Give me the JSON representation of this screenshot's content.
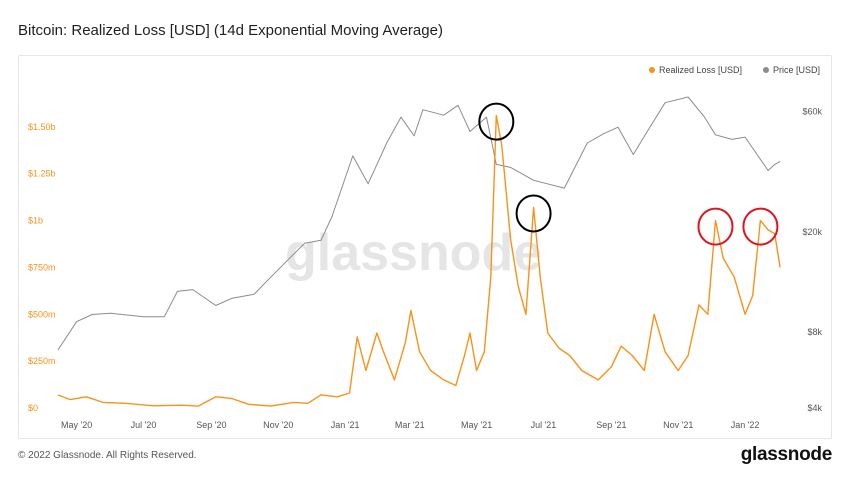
{
  "page": {
    "title": "Bitcoin: Realized Loss [USD] (14d Exponential Moving Average)",
    "copyright": "© 2022 Glassnode. All Rights Reserved.",
    "brand": "glassnode",
    "watermark": "glassnode"
  },
  "colors": {
    "loss": "#f7931a",
    "price": "#8c8c8c",
    "highlight_black": "#000000",
    "highlight_red": "#e0141e"
  },
  "chart_data": {
    "type": "line",
    "x_tick_labels": [
      "May '20",
      "Jul '20",
      "Sep '20",
      "Nov '20",
      "Jan '21",
      "Mar '21",
      "May '21",
      "Jul '21",
      "Sep '21",
      "Nov '21",
      "Jan '22"
    ],
    "x_ticks": [
      "2020-05-01",
      "2020-07-01",
      "2020-09-01",
      "2020-11-01",
      "2021-01-01",
      "2021-03-01",
      "2021-05-01",
      "2021-07-01",
      "2021-09-01",
      "2021-11-01",
      "2022-01-01"
    ],
    "xlim": [
      "2020-04-14",
      "2022-02-11"
    ],
    "left_axis": {
      "ticks": [
        0,
        250000000,
        500000000,
        750000000,
        1000000000,
        1250000000,
        1500000000
      ],
      "tick_labels": [
        "$0",
        "$250m",
        "$500m",
        "$750m",
        "$1b",
        "$1.25b",
        "$1.50b"
      ],
      "ylim": [
        0,
        1750000000
      ]
    },
    "right_axis": {
      "scale": "log",
      "ticks": [
        4000,
        8000,
        20000,
        60000
      ],
      "tick_labels": [
        "$4k",
        "$8k",
        "$20k",
        "$60k"
      ],
      "ylim": [
        4000,
        80000
      ]
    },
    "legend": {
      "position": "top-right",
      "items": [
        "Realized Loss [USD]",
        "Price [USD]"
      ]
    },
    "series": [
      {
        "name": "Realized Loss [USD]",
        "axis": "left",
        "points": [
          [
            "2020-04-14",
            70000000
          ],
          [
            "2020-04-25",
            45000000
          ],
          [
            "2020-05-10",
            60000000
          ],
          [
            "2020-05-25",
            30000000
          ],
          [
            "2020-06-15",
            25000000
          ],
          [
            "2020-07-10",
            12000000
          ],
          [
            "2020-08-05",
            15000000
          ],
          [
            "2020-08-20",
            10000000
          ],
          [
            "2020-09-05",
            60000000
          ],
          [
            "2020-09-20",
            50000000
          ],
          [
            "2020-10-05",
            20000000
          ],
          [
            "2020-10-25",
            10000000
          ],
          [
            "2020-11-15",
            30000000
          ],
          [
            "2020-11-28",
            25000000
          ],
          [
            "2020-12-10",
            70000000
          ],
          [
            "2020-12-25",
            60000000
          ],
          [
            "2021-01-05",
            80000000
          ],
          [
            "2021-01-12",
            380000000
          ],
          [
            "2021-01-20",
            200000000
          ],
          [
            "2021-01-30",
            400000000
          ],
          [
            "2021-02-05",
            300000000
          ],
          [
            "2021-02-15",
            150000000
          ],
          [
            "2021-02-25",
            350000000
          ],
          [
            "2021-03-02",
            520000000
          ],
          [
            "2021-03-10",
            300000000
          ],
          [
            "2021-03-20",
            200000000
          ],
          [
            "2021-04-01",
            150000000
          ],
          [
            "2021-04-12",
            120000000
          ],
          [
            "2021-04-20",
            280000000
          ],
          [
            "2021-04-25",
            400000000
          ],
          [
            "2021-05-01",
            200000000
          ],
          [
            "2021-05-08",
            300000000
          ],
          [
            "2021-05-14",
            700000000
          ],
          [
            "2021-05-19",
            1560000000
          ],
          [
            "2021-05-24",
            1400000000
          ],
          [
            "2021-06-01",
            900000000
          ],
          [
            "2021-06-08",
            650000000
          ],
          [
            "2021-06-15",
            500000000
          ],
          [
            "2021-06-22",
            1070000000
          ],
          [
            "2021-06-28",
            700000000
          ],
          [
            "2021-07-05",
            400000000
          ],
          [
            "2021-07-15",
            320000000
          ],
          [
            "2021-07-25",
            280000000
          ],
          [
            "2021-08-05",
            200000000
          ],
          [
            "2021-08-20",
            150000000
          ],
          [
            "2021-09-01",
            220000000
          ],
          [
            "2021-09-10",
            330000000
          ],
          [
            "2021-09-20",
            280000000
          ],
          [
            "2021-10-01",
            200000000
          ],
          [
            "2021-10-10",
            500000000
          ],
          [
            "2021-10-20",
            300000000
          ],
          [
            "2021-11-01",
            200000000
          ],
          [
            "2021-11-10",
            280000000
          ],
          [
            "2021-11-20",
            550000000
          ],
          [
            "2021-11-28",
            500000000
          ],
          [
            "2021-12-05",
            1000000000
          ],
          [
            "2021-12-12",
            800000000
          ],
          [
            "2021-12-22",
            700000000
          ],
          [
            "2022-01-01",
            500000000
          ],
          [
            "2022-01-08",
            600000000
          ],
          [
            "2022-01-15",
            1000000000
          ],
          [
            "2022-01-22",
            950000000
          ],
          [
            "2022-01-28",
            930000000
          ],
          [
            "2022-02-02",
            750000000
          ]
        ]
      },
      {
        "name": "Price [USD]",
        "axis": "right",
        "points": [
          [
            "2020-04-14",
            6800
          ],
          [
            "2020-05-01",
            8800
          ],
          [
            "2020-05-15",
            9400
          ],
          [
            "2020-06-01",
            9500
          ],
          [
            "2020-07-01",
            9200
          ],
          [
            "2020-07-20",
            9200
          ],
          [
            "2020-08-01",
            11600
          ],
          [
            "2020-08-15",
            11800
          ],
          [
            "2020-09-05",
            10200
          ],
          [
            "2020-09-20",
            10900
          ],
          [
            "2020-10-10",
            11300
          ],
          [
            "2020-10-25",
            13200
          ],
          [
            "2020-11-10",
            15500
          ],
          [
            "2020-11-25",
            18000
          ],
          [
            "2020-12-10",
            18500
          ],
          [
            "2020-12-20",
            23000
          ],
          [
            "2021-01-08",
            40000
          ],
          [
            "2021-01-22",
            31000
          ],
          [
            "2021-02-08",
            45000
          ],
          [
            "2021-02-21",
            57000
          ],
          [
            "2021-03-05",
            48000
          ],
          [
            "2021-03-13",
            61000
          ],
          [
            "2021-04-01",
            58000
          ],
          [
            "2021-04-14",
            63500
          ],
          [
            "2021-04-25",
            50000
          ],
          [
            "2021-05-10",
            57000
          ],
          [
            "2021-05-19",
            37000
          ],
          [
            "2021-06-01",
            36000
          ],
          [
            "2021-06-22",
            32000
          ],
          [
            "2021-07-20",
            29800
          ],
          [
            "2021-08-10",
            45000
          ],
          [
            "2021-08-25",
            49000
          ],
          [
            "2021-09-07",
            52000
          ],
          [
            "2021-09-21",
            40500
          ],
          [
            "2021-10-05",
            51000
          ],
          [
            "2021-10-20",
            65000
          ],
          [
            "2021-11-10",
            68500
          ],
          [
            "2021-11-25",
            57000
          ],
          [
            "2021-12-05",
            48500
          ],
          [
            "2021-12-20",
            46500
          ],
          [
            "2022-01-01",
            47500
          ],
          [
            "2022-01-22",
            35000
          ],
          [
            "2022-01-28",
            37000
          ],
          [
            "2022-02-02",
            38000
          ]
        ]
      }
    ],
    "annotations": [
      {
        "shape": "circle",
        "color": "black",
        "target": "2021-05-19"
      },
      {
        "shape": "circle",
        "color": "black",
        "target": "2021-06-22"
      },
      {
        "shape": "circle",
        "color": "red",
        "target": "2021-12-05"
      },
      {
        "shape": "circle",
        "color": "red",
        "target": "2022-01-15"
      }
    ]
  }
}
